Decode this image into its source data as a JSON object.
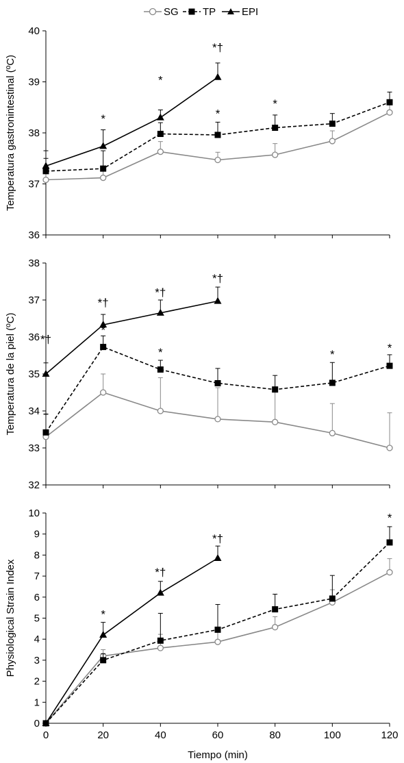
{
  "legend": {
    "items": [
      {
        "name": "SG",
        "color": "#888888",
        "marker": "circle-open",
        "dash": "solid"
      },
      {
        "name": "TP",
        "color": "#000000",
        "marker": "square",
        "dash": "dashed"
      },
      {
        "name": "EPI",
        "color": "#000000",
        "marker": "triangle",
        "dash": "solid"
      }
    ]
  },
  "x_axis": {
    "label": "Tiempo (min)",
    "ticks": [
      0,
      20,
      40,
      60,
      80,
      100,
      120
    ]
  },
  "chart_data": [
    {
      "type": "line",
      "ylabel": "Temperatura gastronintestinal (ºC)",
      "xlabel": "Tiempo (min)",
      "ylim": [
        36,
        40
      ],
      "yticks": [
        36,
        37,
        38,
        39,
        40
      ],
      "series": [
        {
          "name": "SG",
          "x": [
            0,
            20,
            40,
            60,
            80,
            100,
            120
          ],
          "y": [
            37.08,
            37.12,
            37.63,
            37.47,
            37.57,
            37.84,
            38.4
          ],
          "err": [
            0.2,
            0.18,
            0.2,
            0.15,
            0.22,
            0.2,
            0.22
          ]
        },
        {
          "name": "TP",
          "x": [
            0,
            20,
            40,
            60,
            80,
            100,
            120
          ],
          "y": [
            37.25,
            37.3,
            37.98,
            37.96,
            38.1,
            38.18,
            38.6
          ],
          "err": [
            0.25,
            0.35,
            0.22,
            0.25,
            0.25,
            0.2,
            0.2
          ]
        },
        {
          "name": "EPI",
          "x": [
            0,
            20,
            40,
            60
          ],
          "y": [
            37.35,
            37.74,
            38.3,
            39.09
          ],
          "err": [
            0.3,
            0.32,
            0.15,
            0.28
          ]
        }
      ],
      "annotations": [
        {
          "x": 20,
          "y": 38.2,
          "text": "*"
        },
        {
          "x": 40,
          "y": 38.96,
          "text": "*"
        },
        {
          "x": 60,
          "y": 39.6,
          "text": "*†"
        },
        {
          "x": 60,
          "y": 38.3,
          "text": "*"
        },
        {
          "x": 80,
          "y": 38.5,
          "text": "*"
        }
      ]
    },
    {
      "type": "line",
      "ylabel": "Temperatura de la piel (ºC)",
      "xlabel": "Tiempo (min)",
      "ylim": [
        32,
        38
      ],
      "yticks": [
        32,
        33,
        34,
        35,
        36,
        37,
        38
      ],
      "series": [
        {
          "name": "SG",
          "x": [
            0,
            20,
            40,
            60,
            80,
            100,
            120
          ],
          "y": [
            33.3,
            34.5,
            34.0,
            33.78,
            33.7,
            33.4,
            33.0
          ],
          "err": [
            0.6,
            0.5,
            0.9,
            0.85,
            0.95,
            0.8,
            0.95
          ]
        },
        {
          "name": "TP",
          "x": [
            0,
            20,
            40,
            60,
            80,
            100,
            120
          ],
          "y": [
            33.42,
            35.73,
            35.12,
            34.75,
            34.58,
            34.76,
            35.22
          ],
          "err": [
            0.5,
            0.3,
            0.25,
            0.4,
            0.38,
            0.55,
            0.3
          ]
        },
        {
          "name": "EPI",
          "x": [
            0,
            20,
            40,
            60
          ],
          "y": [
            35.0,
            36.33,
            36.65,
            36.97
          ],
          "err": [
            0.3,
            0.28,
            0.35,
            0.38
          ]
        }
      ],
      "annotations": [
        {
          "x": 0,
          "y": 35.83,
          "text": "*†"
        },
        {
          "x": 20,
          "y": 36.82,
          "text": "*†"
        },
        {
          "x": 20,
          "y": 36.08,
          "text": "*"
        },
        {
          "x": 40,
          "y": 37.1,
          "text": "*†"
        },
        {
          "x": 40,
          "y": 35.48,
          "text": "*"
        },
        {
          "x": 60,
          "y": 37.48,
          "text": "*†"
        },
        {
          "x": 100,
          "y": 35.43,
          "text": "*"
        },
        {
          "x": 120,
          "y": 35.6,
          "text": "*"
        }
      ]
    },
    {
      "type": "line",
      "ylabel": "Physiological Strain Index",
      "xlabel": "Tiempo (min)",
      "ylim": [
        0,
        10
      ],
      "yticks": [
        0,
        1,
        2,
        3,
        4,
        5,
        6,
        7,
        8,
        9,
        10
      ],
      "series": [
        {
          "name": "SG",
          "x": [
            0,
            20,
            40,
            60,
            80,
            100,
            120
          ],
          "y": [
            0,
            3.2,
            3.58,
            3.87,
            4.57,
            5.75,
            7.18
          ],
          "err": [
            0,
            0.3,
            0.65,
            0.65,
            0.5,
            0.6,
            0.65
          ]
        },
        {
          "name": "TP",
          "x": [
            0,
            20,
            40,
            60,
            80,
            100,
            120
          ],
          "y": [
            0,
            3.0,
            3.93,
            4.45,
            5.42,
            5.93,
            8.6
          ],
          "err": [
            0,
            0.3,
            1.3,
            1.2,
            0.72,
            1.1,
            0.75
          ]
        },
        {
          "name": "EPI",
          "x": [
            0,
            20,
            40,
            60
          ],
          "y": [
            0,
            4.2,
            6.2,
            7.85
          ],
          "err": [
            0,
            0.6,
            0.55,
            0.58
          ]
        }
      ],
      "annotations": [
        {
          "x": 20,
          "y": 5.0,
          "text": "*"
        },
        {
          "x": 40,
          "y": 7.0,
          "text": "*†"
        },
        {
          "x": 60,
          "y": 8.6,
          "text": "*†"
        },
        {
          "x": 120,
          "y": 9.6,
          "text": "*"
        }
      ]
    }
  ]
}
